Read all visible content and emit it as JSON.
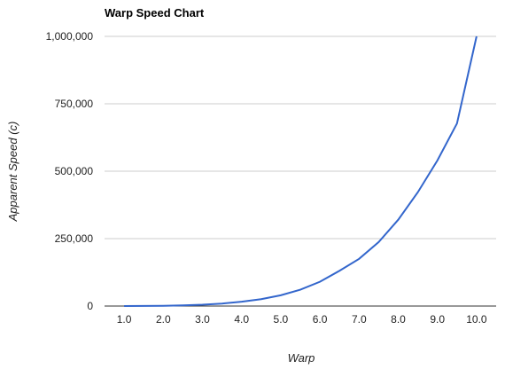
{
  "chart_data": {
    "type": "line",
    "title": "Warp Speed Chart",
    "xlabel": "Warp",
    "ylabel": "Apparent Speed (c)",
    "x_tick_labels": [
      "1.0",
      "2.0",
      "3.0",
      "4.0",
      "5.0",
      "6.0",
      "7.0",
      "8.0",
      "9.0",
      "10.0"
    ],
    "y_tick_labels": [
      "0",
      "250,000",
      "500,000",
      "750,000",
      "1,000,000"
    ],
    "xlim": [
      0.5,
      10.5
    ],
    "ylim": [
      0,
      1000000
    ],
    "grid": true,
    "legend": "none",
    "series": [
      {
        "color": "#3366cc",
        "x": [
          1,
          1.5,
          2,
          2.5,
          3,
          3.5,
          4,
          4.5,
          5,
          5.5,
          6,
          6.5,
          7,
          7.5,
          8,
          8.5,
          9,
          9.5,
          10
        ],
        "y": [
          1,
          253,
          1000,
          2441,
          5000,
          9207,
          16000,
          25629,
          40000,
          60506,
          90000,
          130765,
          175000,
          237305,
          320000,
          421875,
          540000,
          677000,
          1000000
        ]
      }
    ]
  }
}
